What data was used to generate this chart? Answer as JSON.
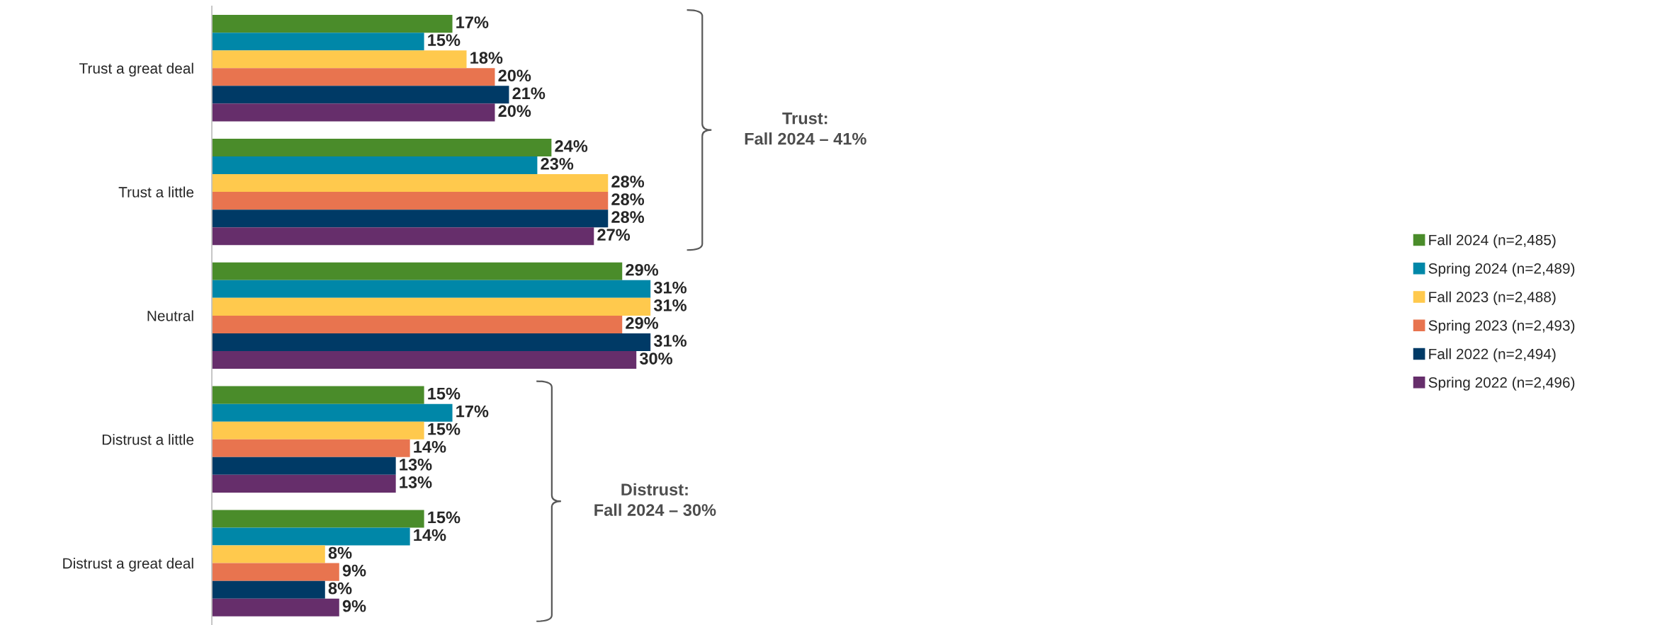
{
  "chart_data": {
    "type": "bar",
    "orientation": "horizontal",
    "categories": [
      "Trust a great deal",
      "Trust a little",
      "Neutral",
      "Distrust a little",
      "Distrust a great deal"
    ],
    "series": [
      {
        "name": "Fall 2024 (n=2,485)",
        "color": "#4a8c2a",
        "values": [
          17,
          24,
          29,
          15,
          15
        ],
        "value_labels": [
          "17%",
          "24%",
          "29%",
          "15%",
          "15%"
        ]
      },
      {
        "name": "Spring 2024 (n=2,489)",
        "color": "#0087a8",
        "values": [
          15,
          23,
          31,
          17,
          14
        ],
        "value_labels": [
          "15%",
          "23%",
          "31%",
          "17%",
          "14%"
        ]
      },
      {
        "name": "Fall 2023 (n=2,488)",
        "color": "#ffc94d",
        "values": [
          18,
          28,
          31,
          15,
          8
        ],
        "value_labels": [
          "18%",
          "28%",
          "31%",
          "15%",
          "8%"
        ]
      },
      {
        "name": "Spring 2023 (n=2,493)",
        "color": "#e8744f",
        "values": [
          20,
          28,
          29,
          14,
          9
        ],
        "value_labels": [
          "20%",
          "28%",
          "29%",
          "14%",
          "9%"
        ]
      },
      {
        "name": "Fall 2022 (n=2,494)",
        "color": "#003a66",
        "values": [
          21,
          28,
          31,
          13,
          8
        ],
        "value_labels": [
          "21%",
          "28%",
          "31%",
          "13%",
          "8%"
        ]
      },
      {
        "name": "Spring 2022 (n=2,496)",
        "color": "#662e6b",
        "values": [
          20,
          27,
          30,
          13,
          9
        ],
        "value_labels": [
          "20%",
          "27%",
          "30%",
          "13%",
          "9%"
        ]
      }
    ],
    "annotations": [
      "Trust:\nFall 2024 – 41%",
      "Distrust:\nFall 2024 – 30%"
    ],
    "legend": "right",
    "marker": "square",
    "tick_labels": "y",
    "grid": false
  }
}
